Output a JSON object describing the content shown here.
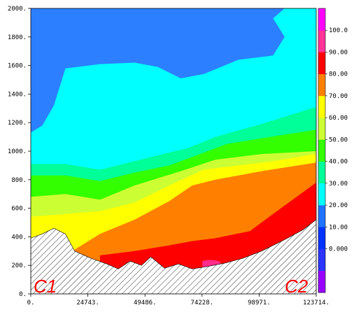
{
  "chart_data": {
    "type": "heatmap",
    "title": "",
    "xlabel": "",
    "ylabel": "",
    "xlim": [
      0,
      123714
    ],
    "ylim": [
      0,
      2000
    ],
    "x_tick_labels": [
      "0.",
      "24743.",
      "49486.",
      "74228.",
      "98971.",
      "123714."
    ],
    "y_tick_labels": [
      "0.",
      "200.",
      "400.",
      "600.",
      "800.",
      "1000.",
      "1200.",
      "1400.",
      "1600.",
      "1800.",
      "2000."
    ],
    "colorbar": {
      "labels": [
        "0.000",
        "10.00",
        "20.00",
        "30.00",
        "40.00",
        "50.00",
        "60.00",
        "70.00",
        "80.00",
        "90.00",
        "100.0"
      ],
      "levels": [
        -10,
        0,
        10,
        20,
        30,
        40,
        50,
        60,
        70,
        80,
        90,
        100
      ],
      "colors": [
        "#9900ff",
        "#2b35ff",
        "#0033ff",
        "#1f73ff",
        "#00ffff",
        "#00ff99",
        "#33ff00",
        "#ccff33",
        "#ffff00",
        "#ff8000",
        "#ff0000",
        "#ff3399",
        "#ff00ff"
      ]
    },
    "contour_bands": [
      {
        "range": "10-20",
        "color": "#2c7fff",
        "boundary_top": [
          [
            0,
            2000
          ],
          [
            123714,
            2000
          ]
        ],
        "region": "upper background"
      },
      {
        "range": "20-30",
        "color": "#00ffff",
        "upper_boundary": [
          [
            0,
            1130
          ],
          [
            5000,
            1180
          ],
          [
            10000,
            1320
          ],
          [
            15000,
            1580
          ],
          [
            30000,
            1610
          ],
          [
            45000,
            1620
          ],
          [
            55000,
            1590
          ],
          [
            65000,
            1510
          ],
          [
            75000,
            1540
          ],
          [
            90000,
            1640
          ],
          [
            105000,
            1670
          ],
          [
            110000,
            1800
          ],
          [
            105000,
            1930
          ],
          [
            110000,
            2000
          ],
          [
            123714,
            2000
          ]
        ]
      },
      {
        "range": "30-40",
        "color": "#00ff99",
        "upper_boundary": [
          [
            0,
            910
          ],
          [
            15000,
            910
          ],
          [
            30000,
            870
          ],
          [
            45000,
            930
          ],
          [
            60000,
            990
          ],
          [
            68000,
            1020
          ],
          [
            80000,
            1100
          ],
          [
            100000,
            1190
          ],
          [
            123714,
            1310
          ]
        ]
      },
      {
        "range": "40-50",
        "color": "#33ff00",
        "upper_boundary": [
          [
            0,
            830
          ],
          [
            15000,
            830
          ],
          [
            30000,
            790
          ],
          [
            45000,
            850
          ],
          [
            60000,
            900
          ],
          [
            70000,
            960
          ],
          [
            85000,
            1050
          ],
          [
            100000,
            1090
          ],
          [
            123714,
            1150
          ]
        ]
      },
      {
        "range": "50-60",
        "color": "#ccff33",
        "upper_boundary": [
          [
            0,
            680
          ],
          [
            15000,
            700
          ],
          [
            30000,
            660
          ],
          [
            45000,
            760
          ],
          [
            65000,
            860
          ],
          [
            80000,
            940
          ],
          [
            100000,
            980
          ],
          [
            123714,
            1000
          ]
        ]
      },
      {
        "range": "60-70",
        "color": "#ffff00",
        "upper_boundary": [
          [
            0,
            540
          ],
          [
            15000,
            560
          ],
          [
            30000,
            580
          ],
          [
            45000,
            640
          ],
          [
            60000,
            760
          ],
          [
            75000,
            870
          ],
          [
            90000,
            900
          ],
          [
            105000,
            930
          ],
          [
            123714,
            980
          ]
        ]
      },
      {
        "range": "70-80",
        "color": "#ff8000",
        "upper_boundary": [
          [
            18000,
            300
          ],
          [
            30000,
            420
          ],
          [
            45000,
            520
          ],
          [
            60000,
            650
          ],
          [
            70000,
            760
          ],
          [
            80000,
            800
          ],
          [
            100000,
            860
          ],
          [
            123714,
            920
          ]
        ]
      },
      {
        "range": "80-90",
        "color": "#ff0000",
        "upper_boundary": [
          [
            30000,
            270
          ],
          [
            45000,
            300
          ],
          [
            60000,
            340
          ],
          [
            70000,
            370
          ],
          [
            80000,
            390
          ],
          [
            95000,
            440
          ],
          [
            105000,
            560
          ],
          [
            123714,
            780
          ]
        ]
      },
      {
        "range": "90-100",
        "color": "#ff2b8a",
        "region": "small patch near x=78000, y=200"
      }
    ],
    "terrain_mask": "hatched ground below the lower boundary",
    "terrain_profile": [
      [
        0,
        390
      ],
      [
        5000,
        420
      ],
      [
        10000,
        460
      ],
      [
        15000,
        420
      ],
      [
        19000,
        300
      ],
      [
        26000,
        250
      ],
      [
        33000,
        210
      ],
      [
        38000,
        175
      ],
      [
        43000,
        230
      ],
      [
        48000,
        200
      ],
      [
        52000,
        260
      ],
      [
        58000,
        180
      ],
      [
        64000,
        210
      ],
      [
        70000,
        175
      ],
      [
        76000,
        190
      ],
      [
        84000,
        215
      ],
      [
        92000,
        250
      ],
      [
        100000,
        300
      ],
      [
        110000,
        380
      ],
      [
        118000,
        450
      ],
      [
        123714,
        520
      ]
    ],
    "annotations": [
      "C1",
      "C2"
    ]
  }
}
